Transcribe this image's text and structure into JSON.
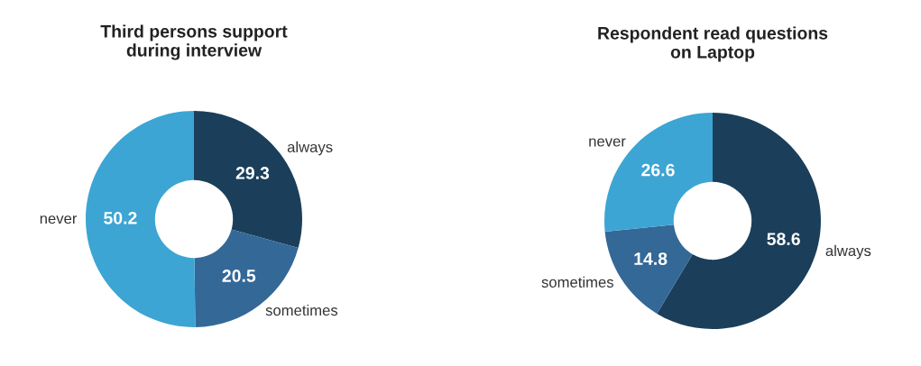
{
  "chart_data": [
    {
      "type": "donut",
      "title": "Third persons support\nduring interview",
      "categories": [
        "always",
        "sometimes",
        "never"
      ],
      "values": [
        29.3,
        20.5,
        50.2
      ],
      "colors": [
        "#1b3f5a",
        "#336897",
        "#3ca5d4"
      ],
      "data_labels": true
    },
    {
      "type": "donut",
      "title": "Respondent read questions\non Laptop",
      "categories": [
        "always",
        "sometimes",
        "never"
      ],
      "values": [
        58.6,
        14.8,
        26.6
      ],
      "colors": [
        "#1b3f5a",
        "#336897",
        "#3ca5d4"
      ],
      "data_labels": true
    }
  ]
}
